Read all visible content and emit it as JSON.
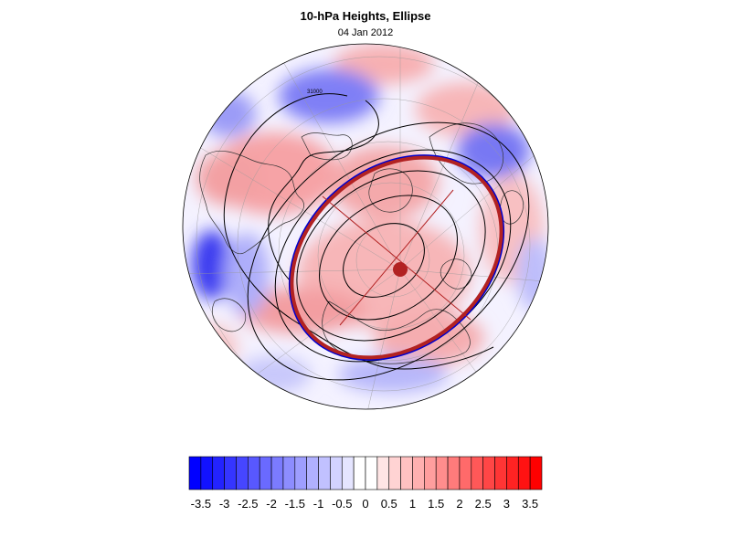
{
  "figure": {
    "title": "10-hPa Heights, Ellipse",
    "date": "04 Jan 2012"
  },
  "map": {
    "projection": "polar stereographic (north)",
    "contour_label": "31000",
    "colors": {
      "ellipse": "#b22222",
      "edge_contour": "#0000cc",
      "coastline": "#333333",
      "contour": "#000000"
    }
  },
  "colorbar": {
    "min": -3.5,
    "max": 3.5,
    "step": 0.25,
    "tick_labels": [
      "-3.5",
      "-3",
      "-2.5",
      "-2",
      "-1.5",
      "-1",
      "-0.5",
      "0",
      "0.5",
      "1",
      "1.5",
      "2",
      "2.5",
      "3",
      "3.5"
    ]
  }
}
